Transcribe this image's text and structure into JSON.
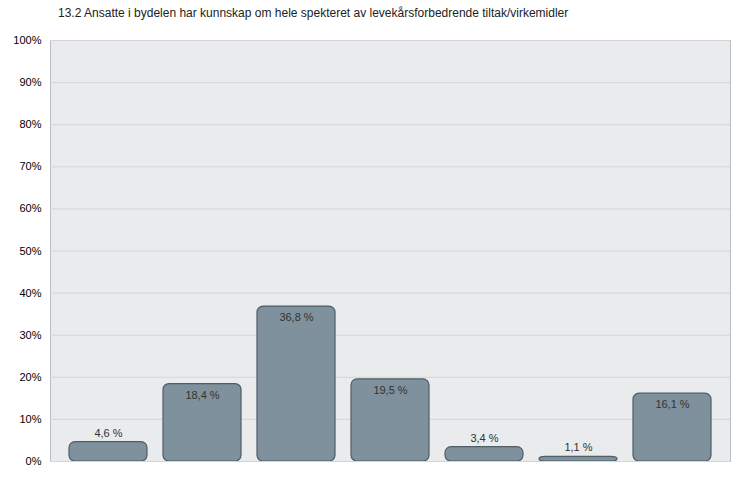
{
  "chart_data": {
    "type": "bar",
    "title": "13.2 Ansatte i bydelen har kunnskap om hele spekteret av levekårsforbedrende tiltak/virkemidler",
    "categories": [
      null,
      null,
      null,
      null,
      null,
      null,
      null
    ],
    "values": [
      4.6,
      18.4,
      36.8,
      19.5,
      3.4,
      1.1,
      16.1
    ],
    "value_labels": [
      "4,6 %",
      "18,4 %",
      "36,8 %",
      "19,5 %",
      "3,4 %",
      "1,1 %",
      "16,1 %"
    ],
    "data_labels": true,
    "color": "#7f919c",
    "ylim": [
      0,
      100
    ],
    "yticks": [
      {
        "value": 0,
        "label": "0%"
      },
      {
        "value": 10,
        "label": "10%"
      },
      {
        "value": 20,
        "label": "20%"
      },
      {
        "value": 30,
        "label": "30%"
      },
      {
        "value": 40,
        "label": "40%"
      },
      {
        "value": 50,
        "label": "50%"
      },
      {
        "value": 60,
        "label": "60%"
      },
      {
        "value": 70,
        "label": "70%"
      },
      {
        "value": 80,
        "label": "80%"
      },
      {
        "value": 90,
        "label": "90%"
      },
      {
        "value": 100,
        "label": "100%"
      }
    ],
    "grid": true,
    "tick_labels": "y"
  }
}
